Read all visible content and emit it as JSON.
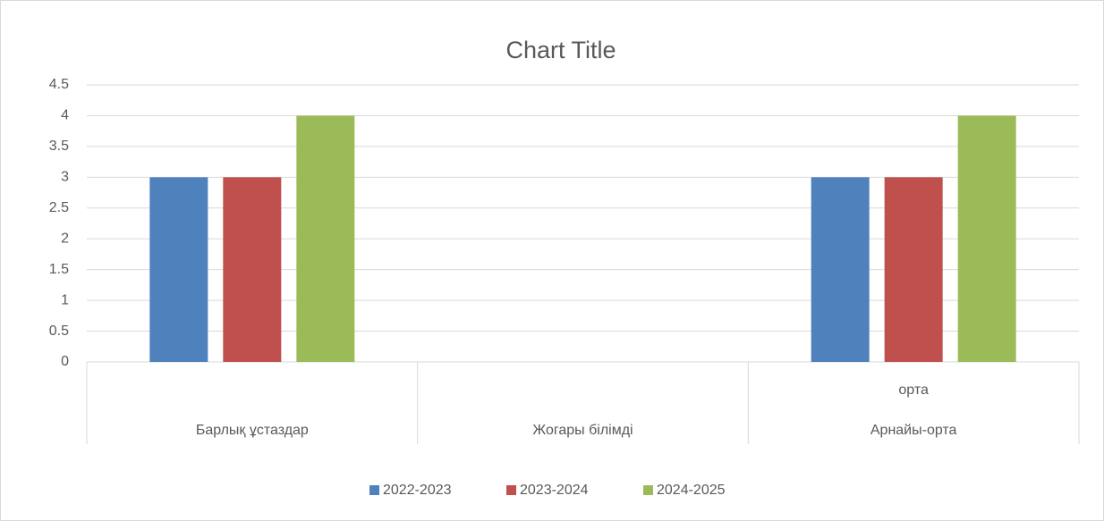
{
  "chart_data": {
    "type": "bar",
    "title": "Chart Title",
    "categories": [
      "Барлық ұстаздар",
      "Жогары білімді",
      "Арнайы-орта"
    ],
    "subcategories": [
      null,
      null,
      "орта"
    ],
    "series": [
      {
        "name": "2022-2023",
        "color": "#4f81bd",
        "values": [
          3,
          null,
          3
        ]
      },
      {
        "name": "2023-2024",
        "color": "#c0504d",
        "values": [
          3,
          null,
          3
        ]
      },
      {
        "name": "2024-2025",
        "color": "#9bbb59",
        "values": [
          4,
          null,
          4
        ]
      }
    ],
    "ylim": [
      0,
      4.5
    ],
    "yticks": [
      0,
      0.5,
      1,
      1.5,
      2,
      2.5,
      3,
      3.5,
      4,
      4.5
    ],
    "grid": true,
    "legend": "bottom"
  }
}
